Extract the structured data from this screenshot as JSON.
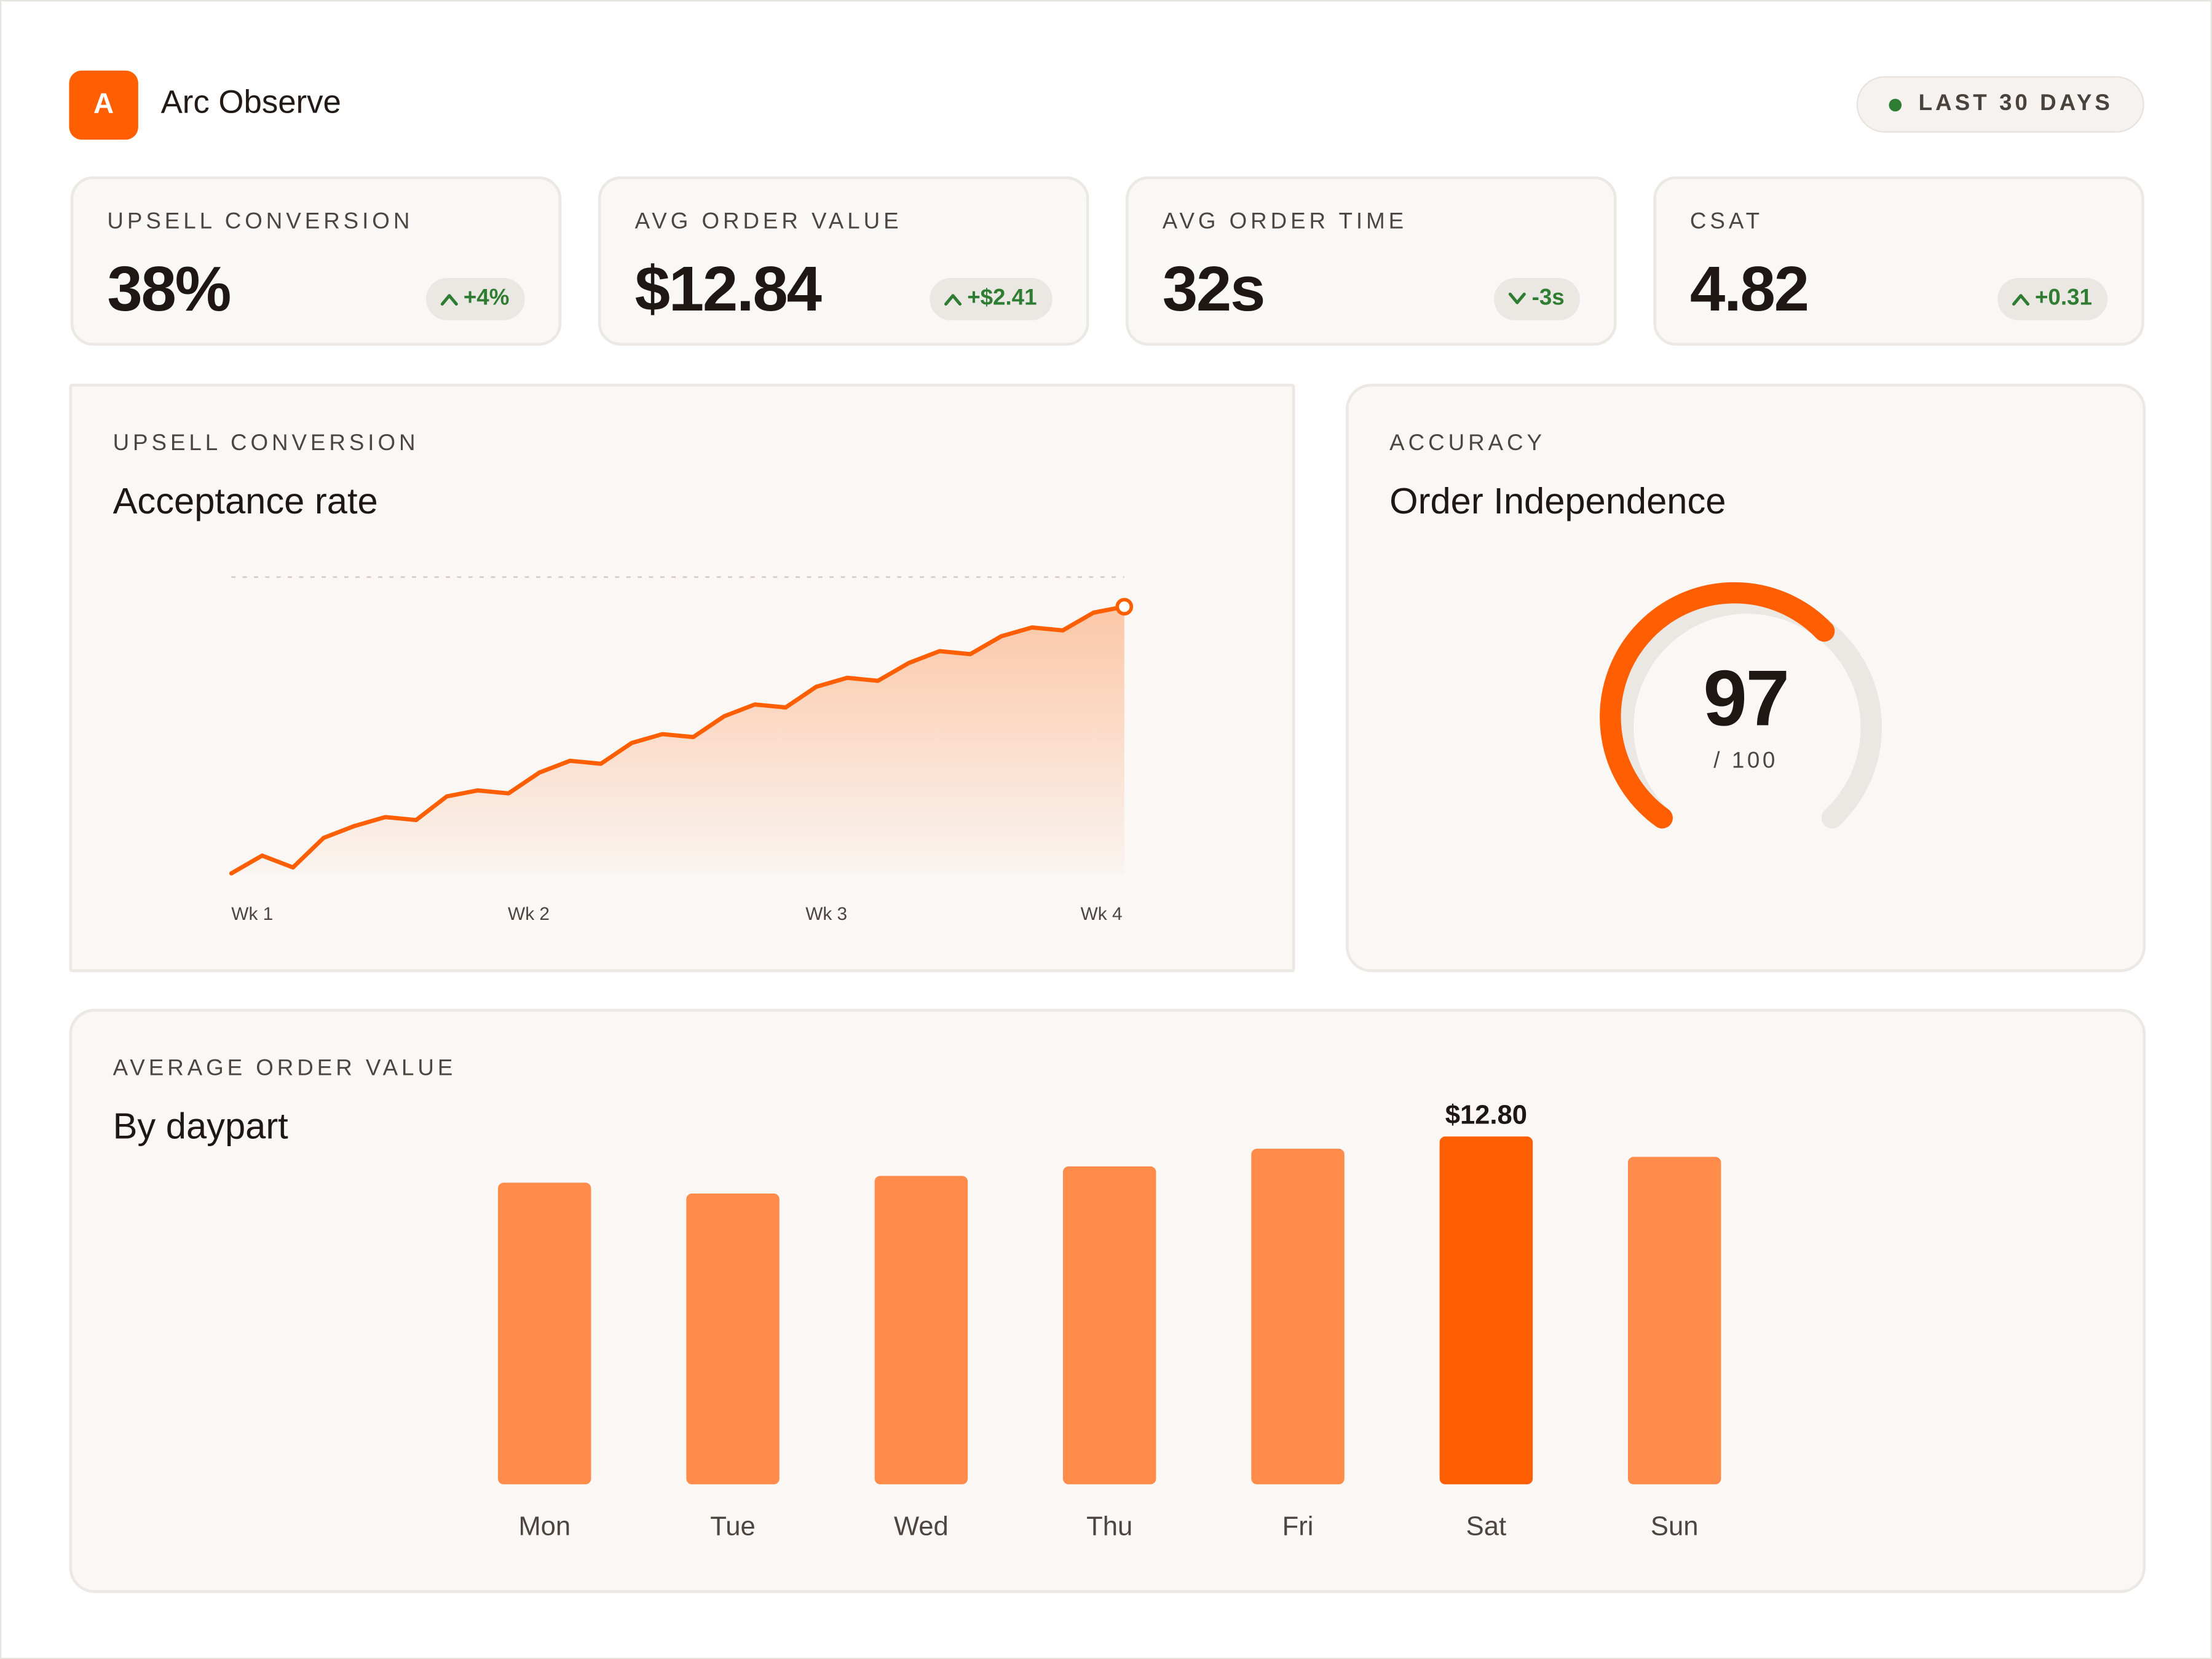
{
  "app": {
    "logo_letter": "A",
    "title": "Arc Observe"
  },
  "range": {
    "label": "LAST 30 DAYS",
    "dot_color": "#2f7d32"
  },
  "kpis": [
    {
      "label": "UPSELL CONVERSION",
      "value": "38%",
      "delta": "+4%",
      "direction": "up"
    },
    {
      "label": "AVG ORDER VALUE",
      "value": "$12.84",
      "delta": "+$2.41",
      "direction": "up"
    },
    {
      "label": "AVG ORDER TIME",
      "value": "32s",
      "delta": "-3s",
      "direction": "down"
    },
    {
      "label": "CSAT",
      "value": "4.82",
      "delta": "+0.31",
      "direction": "up"
    }
  ],
  "colors": {
    "accent": "#ff5f00",
    "bar": "#ff8c4a",
    "positive": "#2f7d32"
  },
  "line_panel": {
    "label": "UPSELL CONVERSION",
    "title": "Acceptance rate"
  },
  "gauge_panel": {
    "label": "ACCURACY",
    "title": "Order Independence",
    "value": "97",
    "max_text": "/ 100"
  },
  "bar_panel": {
    "label": "AVERAGE ORDER VALUE",
    "title": "By daypart"
  },
  "chart_data": [
    {
      "type": "area",
      "title": "Acceptance rate",
      "x_tick_labels": [
        "Wk 1",
        "Wk 2",
        "Wk 3",
        "Wk 4"
      ],
      "y_relative": [
        0.0,
        0.06,
        0.02,
        0.12,
        0.16,
        0.19,
        0.18,
        0.26,
        0.28,
        0.27,
        0.34,
        0.38,
        0.37,
        0.44,
        0.47,
        0.46,
        0.53,
        0.57,
        0.56,
        0.63,
        0.66,
        0.65,
        0.71,
        0.75,
        0.74,
        0.8,
        0.83,
        0.82,
        0.88,
        0.9
      ],
      "target_line": true,
      "grid": false
    },
    {
      "type": "bar",
      "title": "By daypart",
      "categories": [
        "Mon",
        "Tue",
        "Wed",
        "Thu",
        "Fri",
        "Sat",
        "Sun"
      ],
      "values": [
        11.1,
        10.7,
        11.35,
        11.7,
        12.35,
        12.8,
        12.05
      ],
      "highlight_index": 5,
      "highlight_label": "$12.80",
      "ylim": [
        0,
        13.5
      ]
    }
  ]
}
